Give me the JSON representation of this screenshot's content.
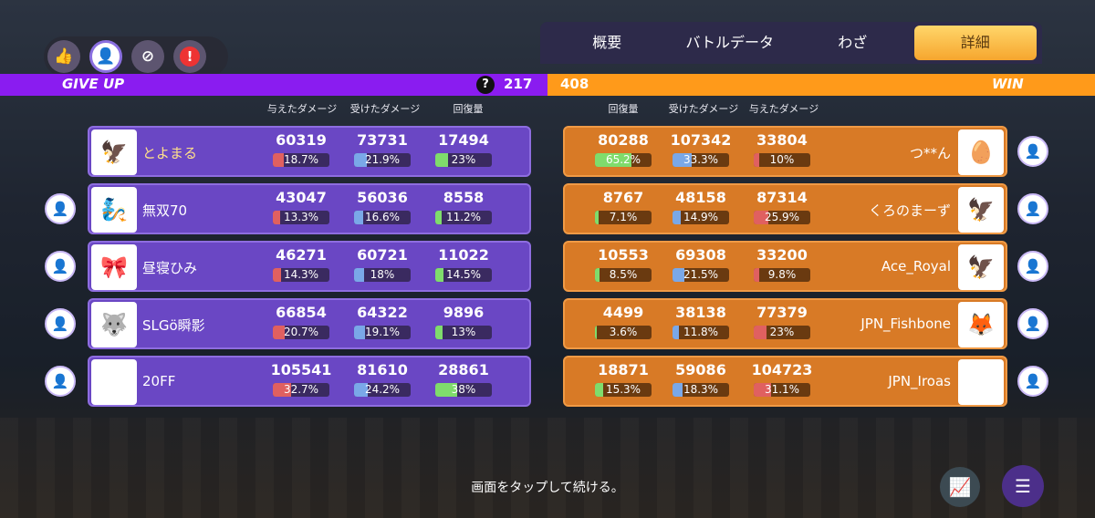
{
  "top_icons": [
    {
      "name": "thumbs-up-icon",
      "glyph": "👍",
      "style": "dark"
    },
    {
      "name": "add-friend-icon",
      "glyph": "👤",
      "style": "light"
    },
    {
      "name": "block-user-icon",
      "glyph": "⊘",
      "style": "dark"
    },
    {
      "name": "report-icon",
      "glyph": "!",
      "style": "red"
    }
  ],
  "tabs": [
    {
      "label": "概要",
      "active": false
    },
    {
      "label": "バトルデータ",
      "active": false
    },
    {
      "label": "わざ",
      "active": false
    },
    {
      "label": "詳細",
      "active": true
    }
  ],
  "scorebar": {
    "left_label": "GIVE UP",
    "left_score": "217",
    "right_score": "408",
    "right_label": "WIN",
    "help_glyph": "?"
  },
  "left_headers": [
    "与えたダメージ",
    "受けたダメージ",
    "回復量"
  ],
  "right_headers": [
    "回復量",
    "受けたダメージ",
    "与えたダメージ"
  ],
  "left_team": [
    {
      "name": "とよまる",
      "avatar": "🦅",
      "dealt": "60319",
      "dealt_pct": "18.7%",
      "dealt_frac": 0.187,
      "taken": "73731",
      "taken_pct": "21.9%",
      "taken_frac": 0.219,
      "heal": "17494",
      "heal_pct": "23%",
      "heal_frac": 0.23,
      "has_add": false
    },
    {
      "name": "無双70",
      "avatar": "🧞",
      "dealt": "43047",
      "dealt_pct": "13.3%",
      "dealt_frac": 0.133,
      "taken": "56036",
      "taken_pct": "16.6%",
      "taken_frac": 0.166,
      "heal": "8558",
      "heal_pct": "11.2%",
      "heal_frac": 0.112,
      "has_add": true
    },
    {
      "name": "昼寝ひみ",
      "avatar": "🎀",
      "dealt": "46271",
      "dealt_pct": "14.3%",
      "dealt_frac": 0.143,
      "taken": "60721",
      "taken_pct": "18%",
      "taken_frac": 0.18,
      "heal": "11022",
      "heal_pct": "14.5%",
      "heal_frac": 0.145,
      "has_add": true
    },
    {
      "name": "SLGö瞬影",
      "avatar": "🐺",
      "dealt": "66854",
      "dealt_pct": "20.7%",
      "dealt_frac": 0.207,
      "taken": "64322",
      "taken_pct": "19.1%",
      "taken_frac": 0.191,
      "heal": "9896",
      "heal_pct": "13%",
      "heal_frac": 0.13,
      "has_add": true
    },
    {
      "name": "20FF",
      "avatar": "🕊",
      "dealt": "105541",
      "dealt_pct": "32.7%",
      "dealt_frac": 0.327,
      "taken": "81610",
      "taken_pct": "24.2%",
      "taken_frac": 0.242,
      "heal": "28861",
      "heal_pct": "38%",
      "heal_frac": 0.38,
      "has_add": true
    }
  ],
  "right_team": [
    {
      "name": "つ**ん",
      "avatar": "🥚",
      "heal": "80288",
      "heal_pct": "65.2%",
      "heal_frac": 0.652,
      "taken": "107342",
      "taken_pct": "33.3%",
      "taken_frac": 0.333,
      "dealt": "33804",
      "dealt_pct": "10%",
      "dealt_frac": 0.1,
      "has_add": true
    },
    {
      "name": "くろのまーず",
      "avatar": "🦅",
      "heal": "8767",
      "heal_pct": "7.1%",
      "heal_frac": 0.071,
      "taken": "48158",
      "taken_pct": "14.9%",
      "taken_frac": 0.149,
      "dealt": "87314",
      "dealt_pct": "25.9%",
      "dealt_frac": 0.259,
      "has_add": true
    },
    {
      "name": "Ace_Royal",
      "avatar": "🦅",
      "heal": "10553",
      "heal_pct": "8.5%",
      "heal_frac": 0.085,
      "taken": "69308",
      "taken_pct": "21.5%",
      "taken_frac": 0.215,
      "dealt": "33200",
      "dealt_pct": "9.8%",
      "dealt_frac": 0.098,
      "has_add": true
    },
    {
      "name": "JPN_Fishbone",
      "avatar": "🦊",
      "heal": "4499",
      "heal_pct": "3.6%",
      "heal_frac": 0.036,
      "taken": "38138",
      "taken_pct": "11.8%",
      "taken_frac": 0.118,
      "dealt": "77379",
      "dealt_pct": "23%",
      "dealt_frac": 0.23,
      "has_add": true
    },
    {
      "name": "JPN_Iroas",
      "avatar": "🕊",
      "heal": "18871",
      "heal_pct": "15.3%",
      "heal_frac": 0.153,
      "taken": "59086",
      "taken_pct": "18.3%",
      "taken_frac": 0.183,
      "dealt": "104723",
      "dealt_pct": "31.1%",
      "dealt_frac": 0.311,
      "has_add": true
    }
  ],
  "add_glyph": "👤",
  "footer": {
    "prompt": "画面をタップして続ける。",
    "stats_icon": "📈",
    "menu_icon": "☰"
  }
}
